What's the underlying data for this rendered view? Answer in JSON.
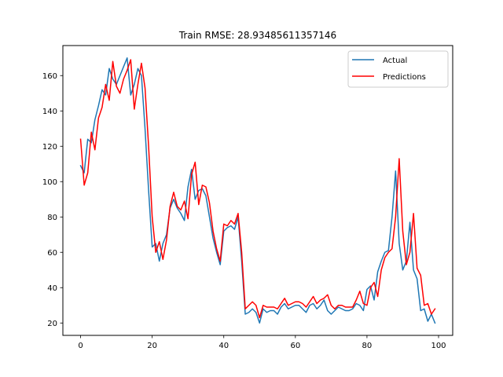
{
  "chart_data": {
    "type": "line",
    "title": "Train RMSE: 28.93485611357146",
    "xlabel": "",
    "ylabel": "",
    "xlim": [
      -4.95,
      103.95
    ],
    "ylim": [
      13,
      177
    ],
    "x_ticks": [
      0,
      20,
      40,
      60,
      80,
      100
    ],
    "y_ticks": [
      20,
      40,
      60,
      80,
      100,
      120,
      140,
      160
    ],
    "grid": false,
    "legend_position": "top-right",
    "x": [
      0,
      1,
      2,
      3,
      4,
      5,
      6,
      7,
      8,
      9,
      10,
      11,
      12,
      13,
      14,
      15,
      16,
      17,
      18,
      19,
      20,
      21,
      22,
      23,
      24,
      25,
      26,
      27,
      28,
      29,
      30,
      31,
      32,
      33,
      34,
      35,
      36,
      37,
      38,
      39,
      40,
      41,
      42,
      43,
      44,
      45,
      46,
      47,
      48,
      49,
      50,
      51,
      52,
      53,
      54,
      55,
      56,
      57,
      58,
      59,
      60,
      61,
      62,
      63,
      64,
      65,
      66,
      67,
      68,
      69,
      70,
      71,
      72,
      73,
      74,
      75,
      76,
      77,
      78,
      79,
      80,
      81,
      82,
      83,
      84,
      85,
      86,
      87,
      88,
      89,
      90,
      91,
      92,
      93,
      94,
      95,
      96,
      97,
      98,
      99
    ],
    "series": [
      {
        "name": "Actual",
        "color": "#1f77b4",
        "values": [
          109,
          105,
          124,
          122,
          135,
          143,
          152,
          149,
          164,
          158,
          155,
          160,
          165,
          170,
          149,
          155,
          164,
          160,
          130,
          95,
          63,
          65,
          55,
          65,
          70,
          85,
          90,
          85,
          82,
          78,
          97,
          107,
          90,
          95,
          96,
          92,
          80,
          68,
          60,
          53,
          72,
          74,
          75,
          73,
          80,
          55,
          25,
          26,
          28,
          26,
          20,
          28,
          26,
          27,
          27,
          25,
          29,
          31,
          28,
          29,
          30,
          30,
          28,
          26,
          30,
          31,
          28,
          30,
          33,
          27,
          25,
          27,
          29,
          28,
          27,
          27,
          28,
          31,
          30,
          27,
          39,
          41,
          33,
          49,
          55,
          60,
          61,
          80,
          106,
          65,
          50,
          55,
          77,
          50,
          45,
          27,
          28,
          21,
          25,
          20
        ]
      },
      {
        "name": "Predictions",
        "color": "#ff0000",
        "values": [
          124,
          98,
          105,
          128,
          118,
          136,
          142,
          155,
          146,
          168,
          154,
          150,
          158,
          163,
          169,
          141,
          155,
          167,
          153,
          120,
          80,
          60,
          66,
          56,
          67,
          86,
          94,
          86,
          84,
          89,
          79,
          104,
          111,
          87,
          98,
          97,
          88,
          72,
          62,
          55,
          76,
          75,
          78,
          76,
          82,
          60,
          28,
          30,
          32,
          30,
          23,
          30,
          29,
          29,
          29,
          28,
          31,
          34,
          30,
          31,
          32,
          32,
          31,
          29,
          32,
          35,
          31,
          33,
          34,
          36,
          30,
          28,
          30,
          30,
          29,
          29,
          29,
          33,
          38,
          31,
          30,
          40,
          43,
          35,
          50,
          57,
          60,
          62,
          80,
          113,
          72,
          53,
          60,
          82,
          51,
          47,
          30,
          31,
          25,
          28
        ]
      }
    ]
  }
}
